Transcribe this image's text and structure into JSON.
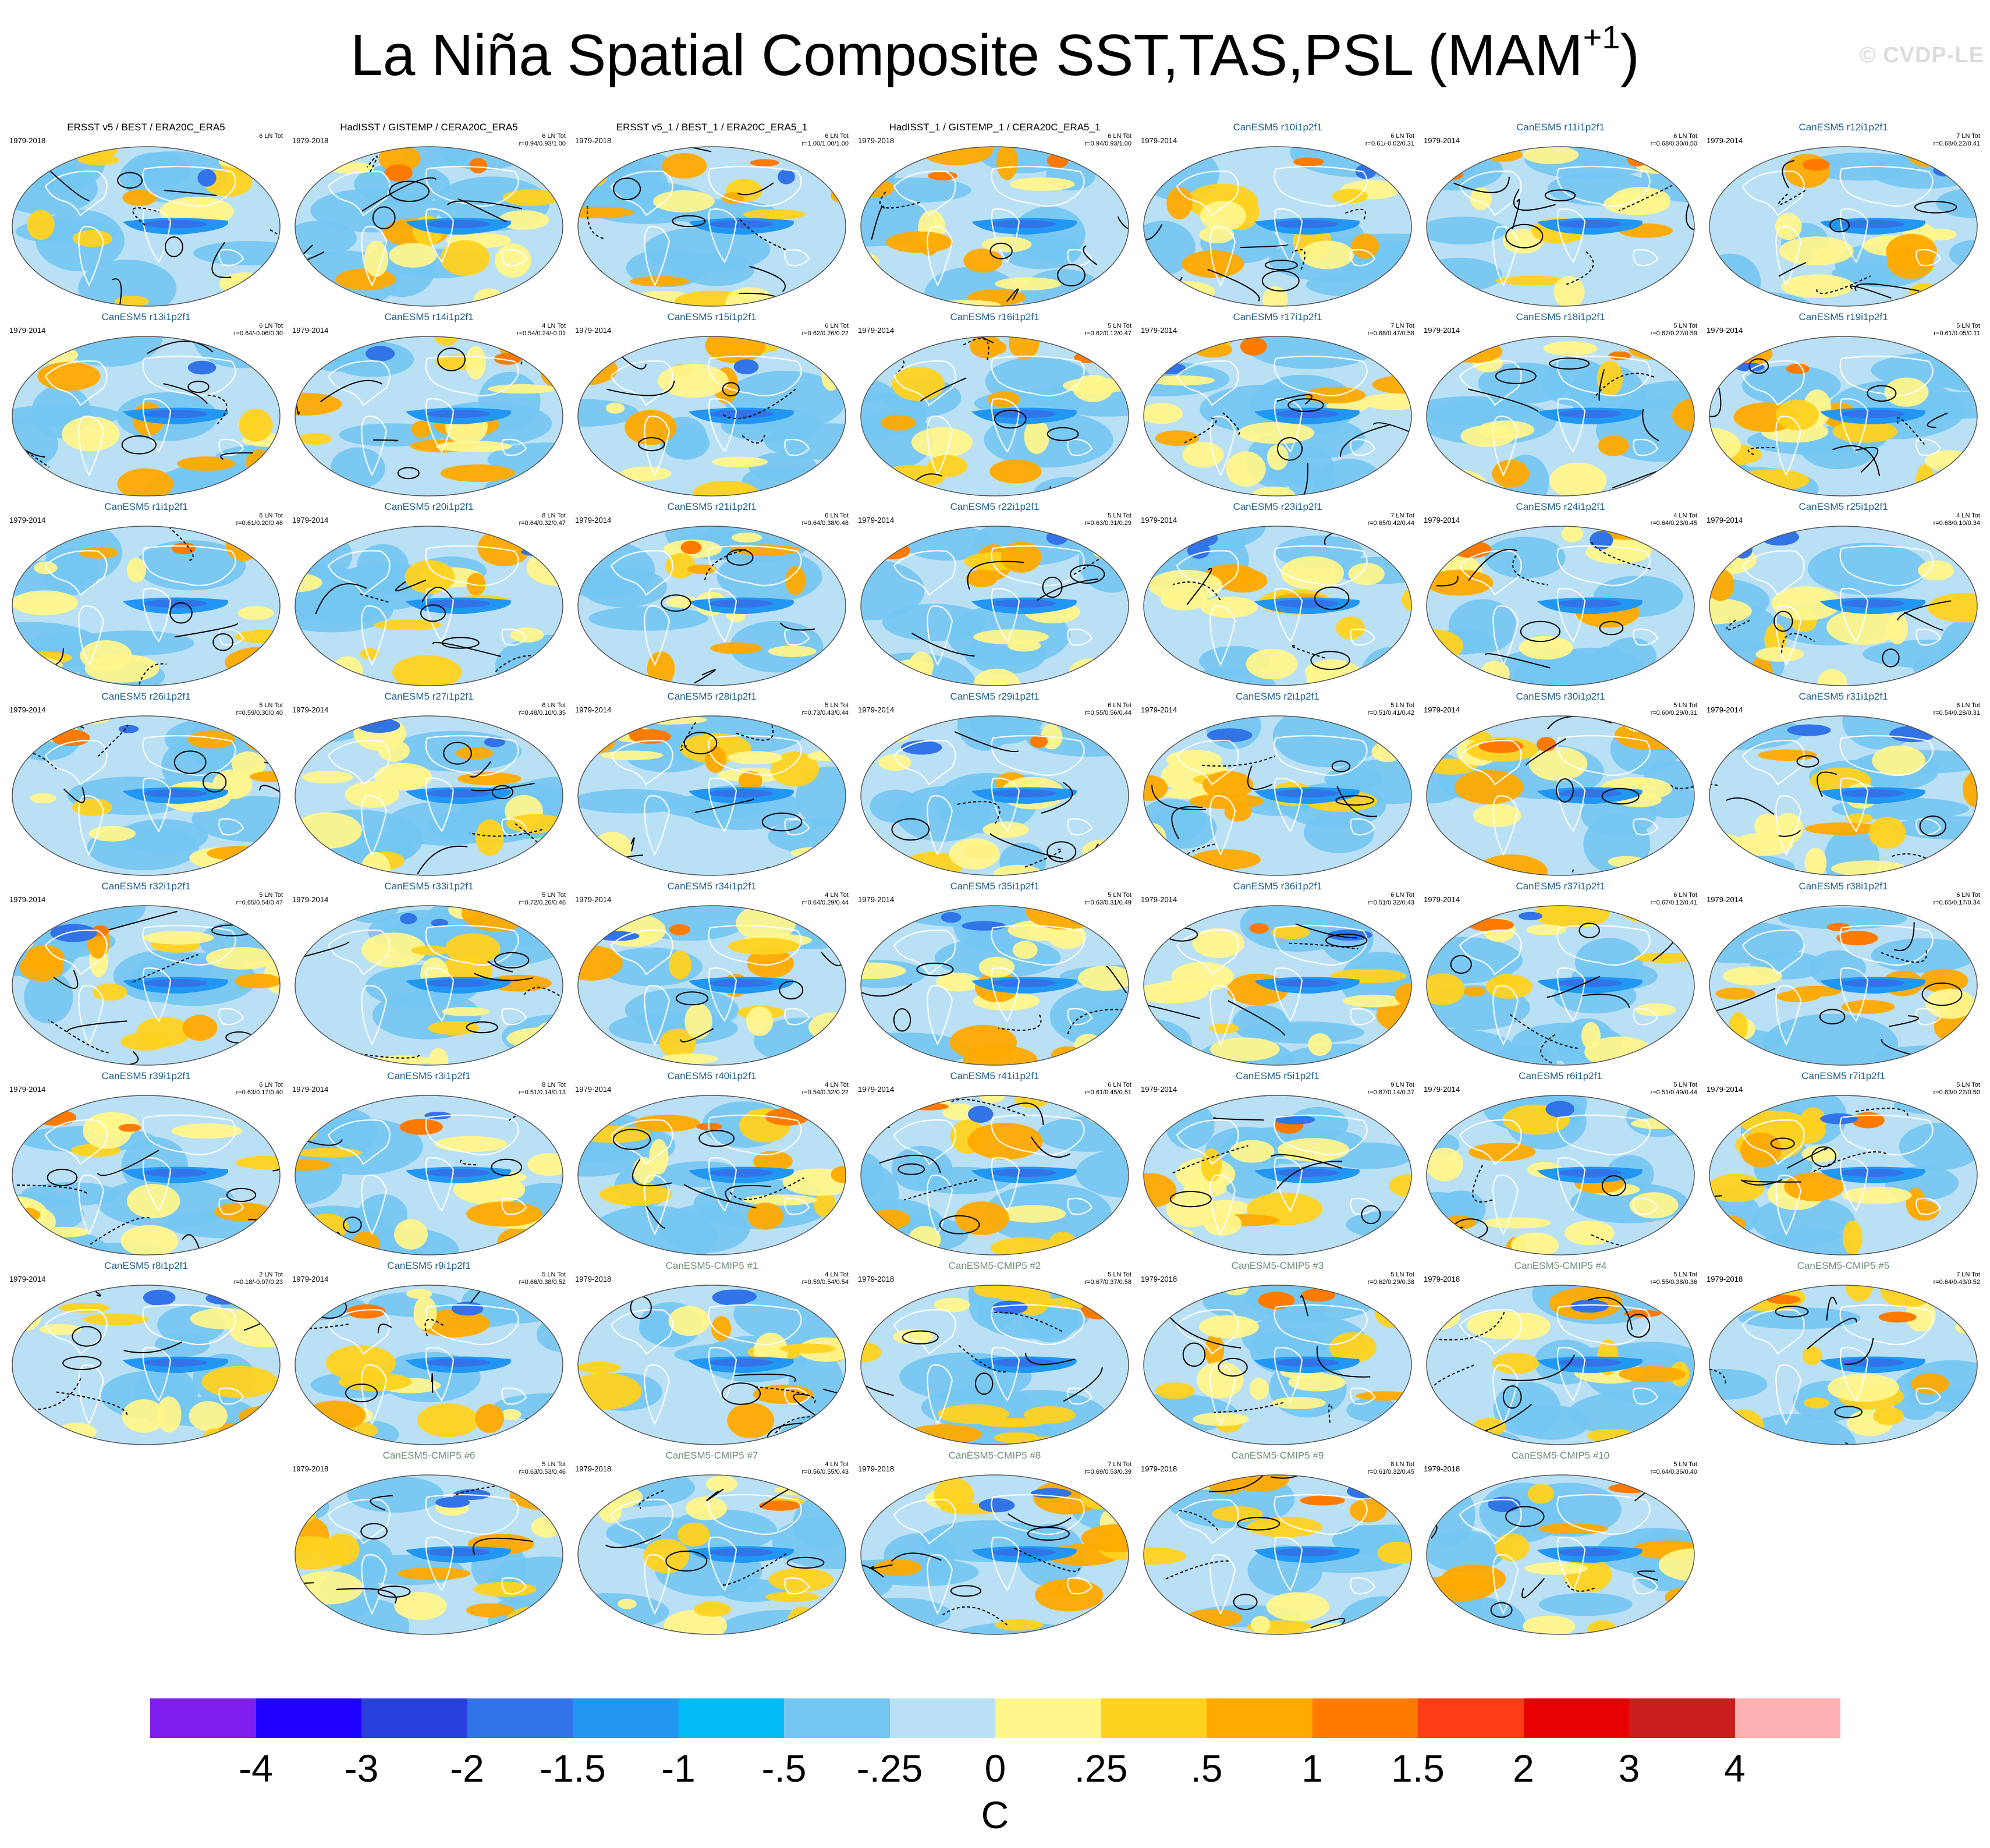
{
  "title": "La Niña Spatial Composite SST,TAS,PSL (MAM",
  "title_superscript": "+1",
  "title_suffix": ")",
  "watermark": "© CVDP-LE",
  "chart_data": {
    "type": "heatmap",
    "description_of_panels": "Global maps (Robinson-like projection) of composite SST/TAS shading with PSL contours",
    "panels": [
      {
        "name": "ERSST v5 / BEST / ERA20C_ERA5",
        "years": "1979-2018",
        "count": "6 LN Tot",
        "r": "",
        "kind": "obs"
      },
      {
        "name": "HadISST / GISTEMP / CERA20C_ERA5",
        "years": "1979-2018",
        "count": "6 LN Tot",
        "r": "r=0.94/0.93/1.00",
        "kind": "obs"
      },
      {
        "name": "ERSST v5_1 / BEST_1 / ERA20C_ERA5_1",
        "years": "1979-2018",
        "count": "6 LN Tot",
        "r": "r=1.00/1.00/1.00",
        "kind": "obs"
      },
      {
        "name": "HadISST_1 / GISTEMP_1 / CERA20C_ERA5_1",
        "years": "1979-2018",
        "count": "6 LN Tot",
        "r": "r=0.94/0.93/1.00",
        "kind": "obs"
      },
      {
        "name": "CanESM5 r10i1p2f1",
        "years": "1979-2014",
        "count": "6 LN Tot",
        "r": "r=0.61/-0.02/0.31",
        "kind": "les"
      },
      {
        "name": "CanESM5 r11i1p2f1",
        "years": "1979-2014",
        "count": "6 LN Tot",
        "r": "r=0.68/0.30/0.50",
        "kind": "les"
      },
      {
        "name": "CanESM5 r12i1p2f1",
        "years": "1979-2014",
        "count": "7 LN Tot",
        "r": "r=0.68/0.22/0.41",
        "kind": "les"
      },
      {
        "name": "CanESM5 r13i1p2f1",
        "years": "1979-2014",
        "count": "6 LN Tot",
        "r": "r=0.64/-0.06/0.30",
        "kind": "les"
      },
      {
        "name": "CanESM5 r14i1p2f1",
        "years": "1979-2014",
        "count": "4 LN Tot",
        "r": "r=0.54/0.24/-0.01",
        "kind": "les"
      },
      {
        "name": "CanESM5 r15i1p2f1",
        "years": "1979-2014",
        "count": "6 LN Tot",
        "r": "r=0.62/0.26/0.22",
        "kind": "les"
      },
      {
        "name": "CanESM5 r16i1p2f1",
        "years": "1979-2014",
        "count": "5 LN Tot",
        "r": "r=0.62/0.12/0.47",
        "kind": "les"
      },
      {
        "name": "CanESM5 r17i1p2f1",
        "years": "1979-2014",
        "count": "7 LN Tot",
        "r": "r=0.68/0.47/0.58",
        "kind": "les"
      },
      {
        "name": "CanESM5 r18i1p2f1",
        "years": "1979-2014",
        "count": "5 LN Tot",
        "r": "r=0.67/0.27/0.59",
        "kind": "les"
      },
      {
        "name": "CanESM5 r19i1p2f1",
        "years": "1979-2014",
        "count": "5 LN Tot",
        "r": "r=0.61/0.05/0.11",
        "kind": "les"
      },
      {
        "name": "CanESM5 r1i1p2f1",
        "years": "1979-2014",
        "count": "6 LN Tot",
        "r": "r=0.61/0.20/0.46",
        "kind": "les"
      },
      {
        "name": "CanESM5 r20i1p2f1",
        "years": "1979-2014",
        "count": "8 LN Tot",
        "r": "r=0.64/0.32/0.47",
        "kind": "les"
      },
      {
        "name": "CanESM5 r21i1p2f1",
        "years": "1979-2014",
        "count": "6 LN Tot",
        "r": "r=0.64/0.38/0.48",
        "kind": "les"
      },
      {
        "name": "CanESM5 r22i1p2f1",
        "years": "1979-2014",
        "count": "5 LN Tot",
        "r": "r=0.63/0.31/0.29",
        "kind": "les"
      },
      {
        "name": "CanESM5 r23i1p2f1",
        "years": "1979-2014",
        "count": "7 LN Tot",
        "r": "r=0.65/0.42/0.44",
        "kind": "les"
      },
      {
        "name": "CanESM5 r24i1p2f1",
        "years": "1979-2014",
        "count": "4 LN Tot",
        "r": "r=0.64/0.23/0.45",
        "kind": "les"
      },
      {
        "name": "CanESM5 r25i1p2f1",
        "years": "1979-2014",
        "count": "4 LN Tot",
        "r": "r=0.68/0.10/0.34",
        "kind": "les"
      },
      {
        "name": "CanESM5 r26i1p2f1",
        "years": "1979-2014",
        "count": "5 LN Tot",
        "r": "r=0.59/0.30/0.40",
        "kind": "les"
      },
      {
        "name": "CanESM5 r27i1p2f1",
        "years": "1979-2014",
        "count": "6 LN Tot",
        "r": "r=0.48/0.10/0.35",
        "kind": "les"
      },
      {
        "name": "CanESM5 r28i1p2f1",
        "years": "1979-2014",
        "count": "5 LN Tot",
        "r": "r=0.73/0.43/0.44",
        "kind": "les"
      },
      {
        "name": "CanESM5 r29i1p2f1",
        "years": "1979-2014",
        "count": "6 LN Tot",
        "r": "r=0.55/0.56/0.44",
        "kind": "les"
      },
      {
        "name": "CanESM5 r2i1p2f1",
        "years": "1979-2014",
        "count": "5 LN Tot",
        "r": "r=0.51/0.41/0.42",
        "kind": "les"
      },
      {
        "name": "CanESM5 r30i1p2f1",
        "years": "1979-2014",
        "count": "5 LN Tot",
        "r": "r=0.60/0.29/0.31",
        "kind": "les"
      },
      {
        "name": "CanESM5 r31i1p2f1",
        "years": "1979-2014",
        "count": "6 LN Tot",
        "r": "r=0.54/0.28/0.31",
        "kind": "les"
      },
      {
        "name": "CanESM5 r32i1p2f1",
        "years": "1979-2014",
        "count": "5 LN Tot",
        "r": "r=0.65/0.54/0.47",
        "kind": "les"
      },
      {
        "name": "CanESM5 r33i1p2f1",
        "years": "1979-2014",
        "count": "5 LN Tot",
        "r": "r=0.72/0.26/0.46",
        "kind": "les"
      },
      {
        "name": "CanESM5 r34i1p2f1",
        "years": "1979-2014",
        "count": "4 LN Tot",
        "r": "r=0.64/0.29/0.44",
        "kind": "les"
      },
      {
        "name": "CanESM5 r35i1p2f1",
        "years": "1979-2014",
        "count": "5 LN Tot",
        "r": "r=0.63/0.31/0.49",
        "kind": "les"
      },
      {
        "name": "CanESM5 r36i1p2f1",
        "years": "1979-2014",
        "count": "6 LN Tot",
        "r": "r=0.51/0.32/0.43",
        "kind": "les"
      },
      {
        "name": "CanESM5 r37i1p2f1",
        "years": "1979-2014",
        "count": "6 LN Tot",
        "r": "r=0.67/0.12/0.41",
        "kind": "les"
      },
      {
        "name": "CanESM5 r38i1p2f1",
        "years": "1979-2014",
        "count": "6 LN Tot",
        "r": "r=0.65/0.17/0.34",
        "kind": "les"
      },
      {
        "name": "CanESM5 r39i1p2f1",
        "years": "1979-2014",
        "count": "6 LN Tot",
        "r": "r=0.63/0.17/0.40",
        "kind": "les"
      },
      {
        "name": "CanESM5 r3i1p2f1",
        "years": "1979-2014",
        "count": "8 LN Tot",
        "r": "r=0.51/0.14/0.13",
        "kind": "les"
      },
      {
        "name": "CanESM5 r40i1p2f1",
        "years": "1979-2014",
        "count": "4 LN Tot",
        "r": "r=0.54/0.32/0.22",
        "kind": "les"
      },
      {
        "name": "CanESM5 r41i1p2f1",
        "years": "1979-2014",
        "count": "6 LN Tot",
        "r": "r=0.61/0.45/0.51",
        "kind": "les"
      },
      {
        "name": "CanESM5 r5i1p2f1",
        "years": "1979-2014",
        "count": "9 LN Tot",
        "r": "r=0.67/0.14/0.37",
        "kind": "les"
      },
      {
        "name": "CanESM5 r6i1p2f1",
        "years": "1979-2014",
        "count": "5 LN Tot",
        "r": "r=0.51/0.49/0.44",
        "kind": "les"
      },
      {
        "name": "CanESM5 r7i1p2f1",
        "years": "1979-2014",
        "count": "5 LN Tot",
        "r": "r=0.63/0.22/0.50",
        "kind": "les"
      },
      {
        "name": "CanESM5 r8i1p2f1",
        "years": "1979-2014",
        "count": "2 LN Tot",
        "r": "r=0.18/-0.07/0.23",
        "kind": "les"
      },
      {
        "name": "CanESM5 r9i1p2f1",
        "years": "1979-2014",
        "count": "5 LN Tot",
        "r": "r=0.66/0.38/0.52",
        "kind": "les"
      },
      {
        "name": "CanESM5-CMIP5 #1",
        "years": "1979-2018",
        "count": "4 LN Tot",
        "r": "r=0.59/0.54/0.54",
        "kind": "cmip"
      },
      {
        "name": "CanESM5-CMIP5 #2",
        "years": "1979-2018",
        "count": "5 LN Tot",
        "r": "r=0.67/0.37/0.58",
        "kind": "cmip"
      },
      {
        "name": "CanESM5-CMIP5 #3",
        "years": "1979-2018",
        "count": "5 LN Tot",
        "r": "r=0.62/0.29/0.38",
        "kind": "cmip"
      },
      {
        "name": "CanESM5-CMIP5 #4",
        "years": "1979-2018",
        "count": "5 LN Tot",
        "r": "r=0.55/0.38/0.36",
        "kind": "cmip"
      },
      {
        "name": "CanESM5-CMIP5 #5",
        "years": "1979-2018",
        "count": "7 LN Tot",
        "r": "r=0.64/0.43/0.52",
        "kind": "cmip"
      },
      {
        "name": "CanESM5-CMIP5 #6",
        "years": "1979-2018",
        "count": "5 LN Tot",
        "r": "r=0.63/0.53/0.46",
        "kind": "cmip"
      },
      {
        "name": "CanESM5-CMIP5 #7",
        "years": "1979-2018",
        "count": "4 LN Tot",
        "r": "r=0.56/0.55/0.43",
        "kind": "cmip"
      },
      {
        "name": "CanESM5-CMIP5 #8",
        "years": "1979-2018",
        "count": "7 LN Tot",
        "r": "r=0.69/0.53/0.39",
        "kind": "cmip"
      },
      {
        "name": "CanESM5-CMIP5 #9",
        "years": "1979-2018",
        "count": "8 LN Tot",
        "r": "r=0.61/0.32/0.45",
        "kind": "cmip"
      },
      {
        "name": "CanESM5-CMIP5 #10",
        "years": "1979-2018",
        "count": "5 LN Tot",
        "r": "r=0.64/0.36/0.40",
        "kind": "cmip"
      }
    ],
    "colorbar": {
      "colors": [
        "#7f1fef",
        "#1f00ff",
        "#2a3fe0",
        "#3373e8",
        "#2196f3",
        "#00bbf5",
        "#74c6f3",
        "#b9e0f5",
        "#fff68c",
        "#ffd21f",
        "#ffaa00",
        "#ff7b00",
        "#ff3c14",
        "#e60000",
        "#c81e1e",
        "#ffb1b1"
      ],
      "levels": [
        "-4",
        "-3",
        "-2",
        "-1.5",
        "-1",
        "-.5",
        "-.25",
        "0",
        ".25",
        ".5",
        "1",
        "1.5",
        "2",
        "3",
        "4"
      ],
      "units": "C"
    },
    "palette": {
      "ocean_neg": "#74c6f3",
      "ocean_neg_strong": "#2196f3",
      "pos_weak": "#fff68c",
      "pos": "#ffd21f",
      "pos_strong": "#ffaa00",
      "hot": "#ff7b00",
      "cold": "#3373e8",
      "base": "#b9e0f5",
      "land_outline": "#ffffff",
      "contour": "#000000"
    }
  }
}
